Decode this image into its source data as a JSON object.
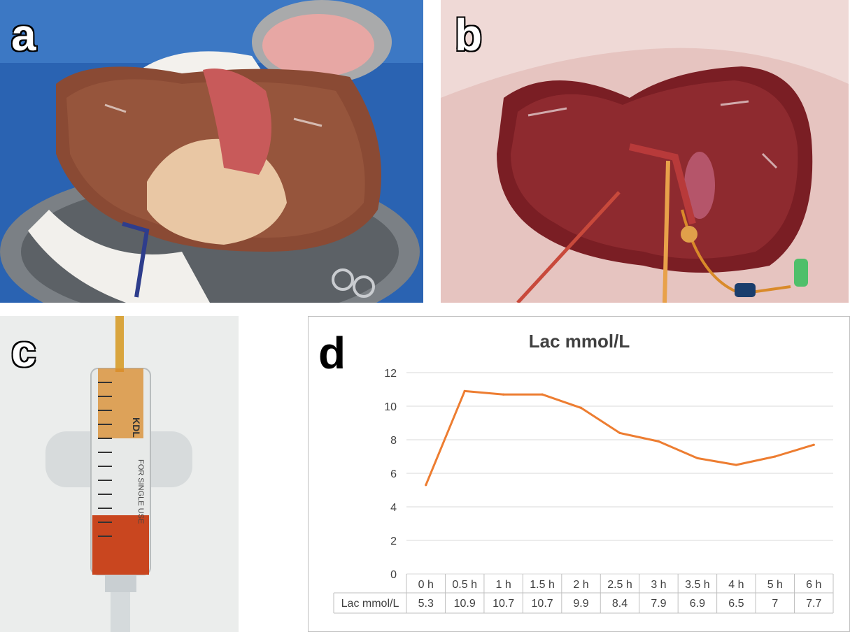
{
  "panels": {
    "a": {
      "label": "a"
    },
    "b": {
      "label": "b"
    },
    "c": {
      "label": "c",
      "syringe_brand": "KDL",
      "syringe_text": "FOR SINGLE USE"
    },
    "d": {
      "label": "d"
    }
  },
  "chart_data": {
    "type": "line",
    "title": "Lac mmol/L",
    "categories": [
      "0 h",
      "0.5 h",
      "1 h",
      "1.5 h",
      "2 h",
      "2.5 h",
      "3 h",
      "3.5 h",
      "4 h",
      "5 h",
      "6 h"
    ],
    "series": [
      {
        "name": "Lac mmol/L",
        "values": [
          5.3,
          10.9,
          10.7,
          10.7,
          9.9,
          8.4,
          7.9,
          6.9,
          6.5,
          7,
          7.7
        ],
        "color": "#ed7d31"
      }
    ],
    "value_labels": [
      "5.3",
      "10.9",
      "10.7",
      "10.7",
      "9.9",
      "8.4",
      "7.9",
      "6.9",
      "6.5",
      "7",
      "7.7"
    ],
    "yticks": [
      "0",
      "2",
      "4",
      "6",
      "8",
      "10",
      "12"
    ],
    "ylim": [
      0,
      12
    ],
    "grid": true,
    "data_table": true
  }
}
